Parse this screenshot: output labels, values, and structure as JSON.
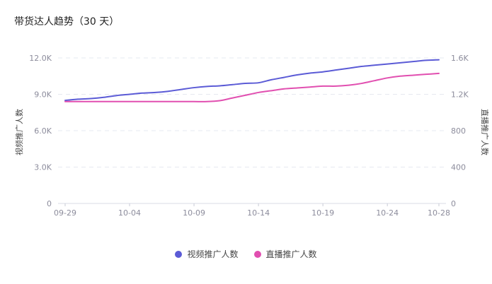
{
  "title": "带货达人趋势（30 天）",
  "colors": {
    "video": "#5b5bd6",
    "live": "#e14fb0",
    "grid": "#e6e8f0",
    "tick": "#8c8c9c"
  },
  "chart_data": {
    "type": "line",
    "title": "带货达人趋势（30 天）",
    "x": [
      "09-29",
      "09-30",
      "10-01",
      "10-02",
      "10-03",
      "10-04",
      "10-05",
      "10-06",
      "10-07",
      "10-08",
      "10-09",
      "10-10",
      "10-11",
      "10-12",
      "10-13",
      "10-14",
      "10-15",
      "10-16",
      "10-17",
      "10-18",
      "10-19",
      "10-20",
      "10-21",
      "10-22",
      "10-23",
      "10-24",
      "10-25",
      "10-26",
      "10-27",
      "10-28"
    ],
    "x_tick_labels": [
      "09-29",
      "10-04",
      "10-09",
      "10-14",
      "10-19",
      "10-24",
      "10-28"
    ],
    "y_left": {
      "label": "视频推广人数",
      "range": [
        0,
        12000
      ],
      "ticks": [
        0,
        3000,
        6000,
        9000,
        12000
      ],
      "tick_labels": [
        "0",
        "3.0K",
        "6.0K",
        "9.0K",
        "12.0K"
      ]
    },
    "y_right": {
      "label": "直播推广人数",
      "range": [
        0,
        1600
      ],
      "ticks": [
        0,
        400,
        800,
        1200,
        1600
      ],
      "tick_labels": [
        "0",
        "400",
        "800",
        "1.2K",
        "1.6K"
      ]
    },
    "grid": true,
    "legend": "bottom-center",
    "series": [
      {
        "name": "视频推广人数",
        "axis": "left",
        "color": "#5b5bd6",
        "values": [
          8500,
          8600,
          8650,
          8750,
          8900,
          9000,
          9100,
          9150,
          9250,
          9400,
          9550,
          9650,
          9700,
          9800,
          9900,
          9950,
          10200,
          10400,
          10600,
          10750,
          10850,
          11000,
          11150,
          11300,
          11400,
          11500,
          11600,
          11700,
          11800,
          11850
        ]
      },
      {
        "name": "直播推广人数",
        "axis": "right",
        "color": "#e14fb0",
        "values": [
          1120,
          1120,
          1120,
          1120,
          1120,
          1120,
          1120,
          1120,
          1120,
          1120,
          1120,
          1120,
          1130,
          1160,
          1190,
          1220,
          1240,
          1260,
          1270,
          1280,
          1290,
          1290,
          1300,
          1320,
          1350,
          1380,
          1400,
          1410,
          1420,
          1430
        ]
      }
    ]
  }
}
